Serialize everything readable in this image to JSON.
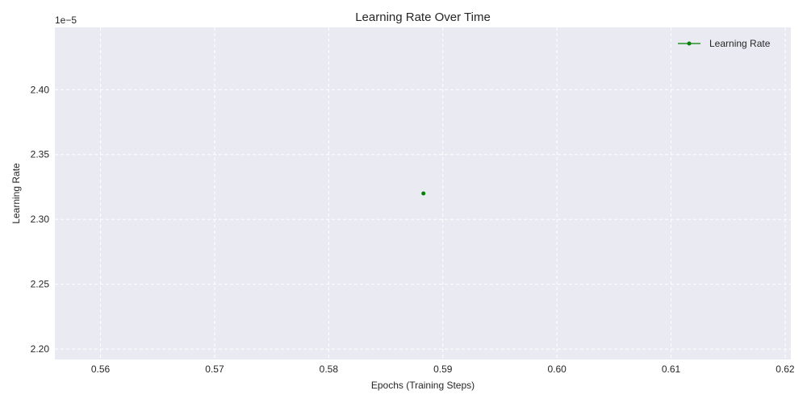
{
  "chart_data": {
    "type": "line",
    "title": "Learning Rate Over Time",
    "xlabel": "Epochs (Training Steps)",
    "ylabel": "Learning Rate",
    "y_offset_label": "1e−5",
    "xlim": [
      0.556,
      0.6205
    ],
    "ylim": [
      2.192,
      2.448
    ],
    "x_ticks": [
      0.56,
      0.57,
      0.58,
      0.59,
      0.6,
      0.61,
      0.62
    ],
    "x_tick_labels": [
      "0.56",
      "0.57",
      "0.58",
      "0.59",
      "0.60",
      "0.61",
      "0.62"
    ],
    "y_ticks": [
      2.2,
      2.25,
      2.3,
      2.35,
      2.4
    ],
    "y_tick_labels": [
      "2.20",
      "2.25",
      "2.30",
      "2.35",
      "2.40"
    ],
    "grid": true,
    "legend_position": "top-right",
    "series": [
      {
        "name": "Learning Rate",
        "color": "#008000",
        "marker": "circle",
        "x": [
          0.5883
        ],
        "y": [
          2.32
        ]
      }
    ],
    "colors": {
      "plot_background": "#eaeaf2",
      "grid": "#ffffff",
      "text": "#262626"
    }
  }
}
